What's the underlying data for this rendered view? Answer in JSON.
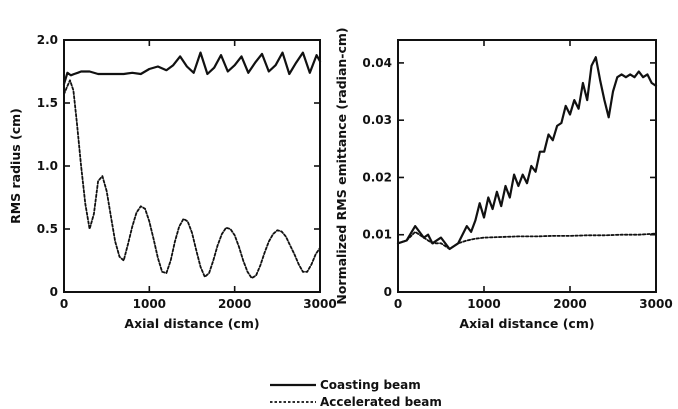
{
  "chart_data": [
    {
      "type": "line",
      "xlabel": "Axial distance (cm)",
      "ylabel": "RMS radius (cm)",
      "xlim": [
        0,
        3000
      ],
      "ylim": [
        0,
        2.0
      ],
      "xticks": [
        0,
        1000,
        2000,
        3000
      ],
      "xtick_labels": [
        "0",
        "1000",
        "2000",
        "3000"
      ],
      "yticks": [
        0,
        0.5,
        1.0,
        1.5,
        2.0
      ],
      "ytick_labels": [
        "0",
        "0.5",
        "1.0",
        "1.5",
        "2.0"
      ],
      "series": [
        {
          "name": "Coasting beam",
          "style": "solid",
          "x": [
            0,
            40,
            80,
            120,
            160,
            200,
            300,
            400,
            500,
            600,
            700,
            800,
            900,
            1000,
            1100,
            1200,
            1280,
            1360,
            1440,
            1520,
            1600,
            1680,
            1760,
            1840,
            1920,
            2000,
            2080,
            2160,
            2240,
            2320,
            2400,
            2480,
            2560,
            2640,
            2720,
            2800,
            2880,
            2960,
            3000
          ],
          "y": [
            1.65,
            1.74,
            1.72,
            1.73,
            1.74,
            1.75,
            1.75,
            1.73,
            1.73,
            1.73,
            1.73,
            1.74,
            1.73,
            1.77,
            1.79,
            1.76,
            1.8,
            1.87,
            1.79,
            1.74,
            1.9,
            1.73,
            1.78,
            1.88,
            1.75,
            1.8,
            1.87,
            1.74,
            1.82,
            1.89,
            1.75,
            1.8,
            1.9,
            1.73,
            1.82,
            1.9,
            1.74,
            1.88,
            1.83
          ]
        },
        {
          "name": "Accelerated beam",
          "style": "dashed",
          "x": [
            0,
            30,
            70,
            110,
            150,
            200,
            250,
            300,
            350,
            400,
            450,
            500,
            550,
            600,
            650,
            700,
            750,
            800,
            850,
            900,
            950,
            1000,
            1050,
            1100,
            1150,
            1200,
            1250,
            1300,
            1350,
            1400,
            1450,
            1500,
            1550,
            1600,
            1650,
            1700,
            1750,
            1800,
            1850,
            1900,
            1950,
            2000,
            2050,
            2100,
            2150,
            2200,
            2250,
            2300,
            2350,
            2400,
            2450,
            2500,
            2550,
            2600,
            2650,
            2700,
            2750,
            2800,
            2850,
            2900,
            2950,
            3000
          ],
          "y": [
            1.57,
            1.62,
            1.68,
            1.6,
            1.35,
            1.0,
            0.7,
            0.5,
            0.62,
            0.88,
            0.92,
            0.8,
            0.6,
            0.4,
            0.28,
            0.25,
            0.38,
            0.52,
            0.63,
            0.68,
            0.66,
            0.56,
            0.42,
            0.27,
            0.16,
            0.15,
            0.25,
            0.4,
            0.52,
            0.58,
            0.56,
            0.47,
            0.33,
            0.2,
            0.12,
            0.15,
            0.25,
            0.37,
            0.46,
            0.51,
            0.5,
            0.45,
            0.36,
            0.25,
            0.16,
            0.11,
            0.13,
            0.21,
            0.31,
            0.4,
            0.46,
            0.49,
            0.48,
            0.44,
            0.37,
            0.3,
            0.22,
            0.16,
            0.16,
            0.22,
            0.3,
            0.35
          ]
        }
      ]
    },
    {
      "type": "line",
      "xlabel": "Axial distance (cm)",
      "ylabel": "Normalized RMS emittance (radian-cm)",
      "xlim": [
        0,
        3000
      ],
      "ylim": [
        0,
        0.044
      ],
      "xticks": [
        0,
        1000,
        2000,
        3000
      ],
      "xtick_labels": [
        "0",
        "1000",
        "2000",
        "3000"
      ],
      "yticks": [
        0,
        0.01,
        0.02,
        0.03,
        0.04
      ],
      "ytick_labels": [
        "0",
        "0.01",
        "0.02",
        "0.03",
        "0.04"
      ],
      "series": [
        {
          "name": "Coasting beam",
          "style": "solid",
          "x": [
            0,
            100,
            200,
            300,
            350,
            400,
            500,
            600,
            700,
            800,
            850,
            900,
            950,
            1000,
            1050,
            1100,
            1150,
            1200,
            1250,
            1300,
            1350,
            1400,
            1450,
            1500,
            1550,
            1600,
            1650,
            1700,
            1750,
            1800,
            1850,
            1900,
            1950,
            2000,
            2050,
            2100,
            2150,
            2200,
            2250,
            2300,
            2350,
            2400,
            2450,
            2500,
            2550,
            2600,
            2650,
            2700,
            2750,
            2800,
            2850,
            2900,
            2950,
            3000
          ],
          "y": [
            0.0085,
            0.009,
            0.0115,
            0.0095,
            0.01,
            0.0085,
            0.0095,
            0.0075,
            0.0085,
            0.0115,
            0.0105,
            0.0125,
            0.0155,
            0.013,
            0.0165,
            0.0145,
            0.0175,
            0.015,
            0.0185,
            0.0165,
            0.0205,
            0.0185,
            0.0205,
            0.019,
            0.022,
            0.021,
            0.0245,
            0.0245,
            0.0275,
            0.0265,
            0.029,
            0.0295,
            0.0325,
            0.031,
            0.0335,
            0.032,
            0.0365,
            0.0335,
            0.0395,
            0.041,
            0.037,
            0.0335,
            0.0305,
            0.035,
            0.0375,
            0.038,
            0.0375,
            0.038,
            0.0375,
            0.0385,
            0.0375,
            0.038,
            0.0365,
            0.036
          ]
        },
        {
          "name": "Accelerated beam",
          "style": "dashed",
          "x": [
            0,
            100,
            200,
            300,
            400,
            500,
            600,
            700,
            800,
            900,
            1000,
            1200,
            1400,
            1600,
            1800,
            2000,
            2200,
            2400,
            2600,
            2800,
            3000
          ],
          "y": [
            0.0085,
            0.009,
            0.0105,
            0.0095,
            0.0085,
            0.0085,
            0.0075,
            0.0085,
            0.009,
            0.0093,
            0.0095,
            0.0096,
            0.0097,
            0.0097,
            0.0098,
            0.0098,
            0.0099,
            0.0099,
            0.01,
            0.01,
            0.0102
          ]
        }
      ]
    }
  ],
  "legend": {
    "items": [
      {
        "label": "Coasting beam",
        "style": "solid"
      },
      {
        "label": "Accelerated beam",
        "style": "dashed"
      }
    ]
  }
}
